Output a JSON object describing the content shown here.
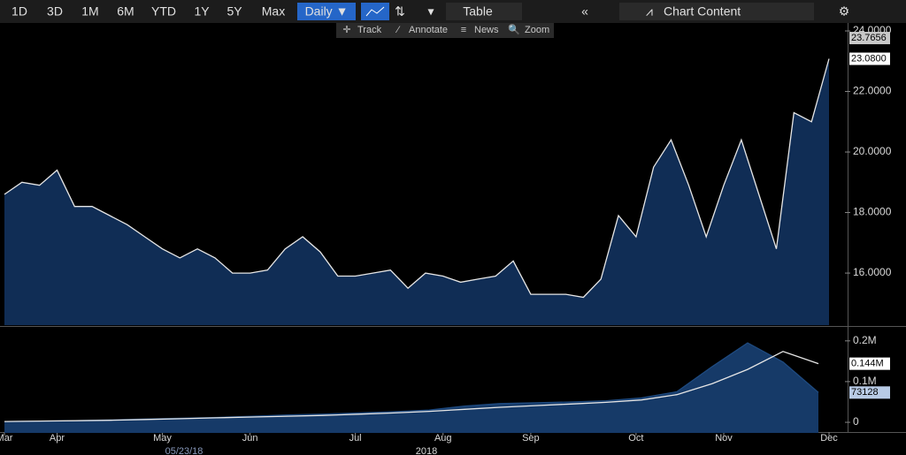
{
  "toolbar": {
    "buttons": [
      "1D",
      "3D",
      "1M",
      "6M",
      "YTD",
      "1Y",
      "5Y",
      "Max"
    ],
    "frequency": "Daily ▼",
    "table": "Table",
    "chart_content": "Chart Content"
  },
  "subtoolbar": [
    "Track",
    "Annotate",
    "News",
    "Zoom"
  ],
  "footer": {
    "cursor_date": "05/23/18",
    "year": "2018"
  },
  "chart_data": [
    {
      "type": "area",
      "color": "#e6e6e6",
      "fill": "#102d55",
      "categories": [
        "Mar",
        null,
        null,
        "Apr",
        null,
        null,
        null,
        null,
        null,
        "May",
        null,
        null,
        null,
        null,
        "Jun",
        null,
        null,
        null,
        null,
        null,
        "Jul",
        null,
        null,
        null,
        null,
        "Aug",
        null,
        null,
        null,
        null,
        "Sep",
        null,
        null,
        null,
        null,
        null,
        "Oct",
        null,
        null,
        null,
        null,
        "Nov",
        null,
        null,
        null,
        null,
        null,
        "Dec"
      ],
      "values": [
        18.6,
        19.0,
        18.9,
        19.4,
        18.2,
        18.2,
        17.9,
        17.6,
        17.2,
        16.8,
        16.5,
        16.8,
        16.5,
        16.0,
        16.0,
        16.1,
        16.8,
        17.2,
        16.7,
        15.9,
        15.9,
        16.0,
        16.1,
        15.5,
        16.0,
        15.9,
        15.7,
        15.8,
        15.9,
        16.4,
        15.3,
        15.3,
        15.3,
        15.2,
        15.8,
        17.9,
        17.2,
        19.5,
        20.4,
        18.9,
        17.2,
        18.9,
        20.4,
        18.6,
        16.8,
        21.3,
        21.0,
        23.08
      ],
      "ylim": [
        14.28,
        24.38
      ],
      "yticks": [
        {
          "value": 16,
          "label": "16.0000"
        },
        {
          "value": 18,
          "label": "18.0000"
        },
        {
          "value": 20,
          "label": "20.0000"
        },
        {
          "value": 22,
          "label": "22.0000"
        },
        {
          "value": 24,
          "label": "24.0000"
        }
      ],
      "annotations": [
        {
          "value": 23.7656,
          "label": "23.7656",
          "color": "#c8c8c8"
        },
        {
          "value": 23.08,
          "label": "23.0800",
          "color": "#ffffff"
        }
      ]
    },
    {
      "type": "area",
      "series": [
        {
          "style": "area",
          "color": "#1e4a80",
          "fill": "#163a68",
          "values": [
            0.002,
            0.003,
            0.004,
            0.006,
            0.008,
            0.01,
            0.012,
            0.015,
            0.018,
            0.02,
            0.023,
            0.026,
            0.03,
            0.04,
            0.046,
            0.048,
            0.05,
            0.053,
            0.06,
            0.075,
            0.137,
            0.195,
            0.148,
            0.073128
          ]
        },
        {
          "style": "line",
          "color": "#e6e6e6",
          "values": [
            0.002,
            0.003,
            0.004,
            0.005,
            0.007,
            0.009,
            0.011,
            0.013,
            0.015,
            0.017,
            0.02,
            0.023,
            0.027,
            0.032,
            0.037,
            0.041,
            0.045,
            0.049,
            0.055,
            0.068,
            0.095,
            0.13,
            0.174,
            0.144
          ]
        }
      ],
      "ylim": [
        -0.026,
        0.23
      ],
      "yticks": [
        0,
        {
          "value": 0.1,
          "label": "0.1M"
        },
        {
          "value": 0.2,
          "label": "0.2M"
        }
      ],
      "annotations": [
        {
          "value": 0.144,
          "label": "0.144M",
          "color": "#ffffff"
        },
        {
          "value": 0.073128,
          "label": "73128",
          "color": "#b8cbe6"
        }
      ]
    }
  ]
}
